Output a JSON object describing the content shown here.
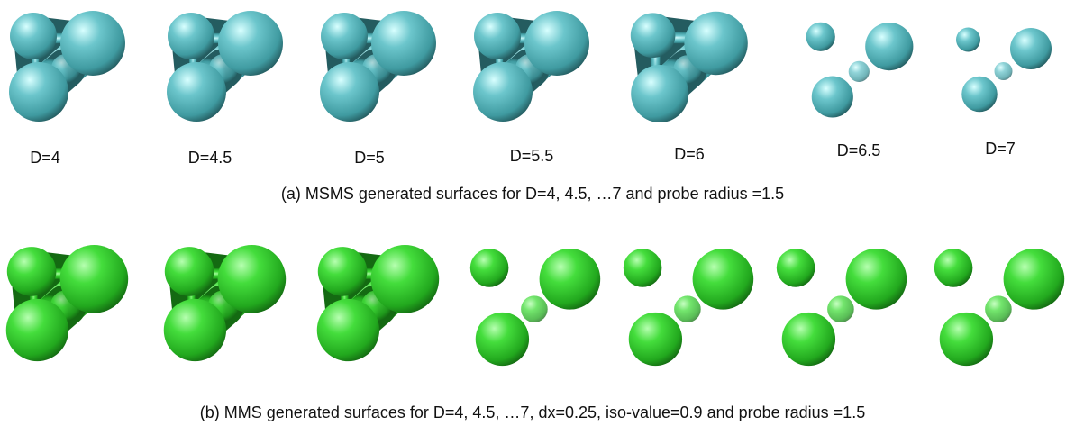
{
  "figure": {
    "row_a": {
      "labels": [
        "D=4",
        "D=4.5",
        "D=5",
        "D=5.5",
        "D=6",
        "D=6.5",
        "D=7"
      ],
      "caption": "(a) MSMS generated surfaces for D=4, 4.5, …7 and probe radius =1.5"
    },
    "row_b": {
      "caption": "(b) MMS generated surfaces for D=4, 4.5, …7, dx=0.25, iso-value=0.9 and probe radius =1.5"
    }
  }
}
